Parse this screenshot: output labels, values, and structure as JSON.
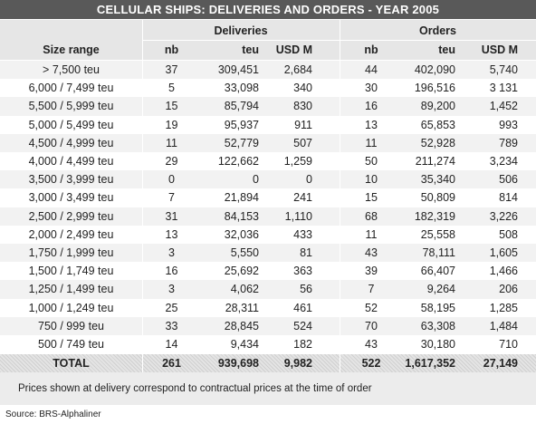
{
  "header": {
    "title": "CELLULAR SHIPS: DELIVERIES AND ORDERS - YEAR 2005"
  },
  "table": {
    "groups": [
      "Deliveries",
      "Orders"
    ],
    "columns": [
      "Size range",
      "nb",
      "teu",
      "USD M",
      "nb",
      "teu",
      "USD M"
    ],
    "rows": [
      [
        "> 7,500 teu",
        "37",
        "309,451",
        "2,684",
        "44",
        "402,090",
        "5,740"
      ],
      [
        "6,000 / 7,499 teu",
        "5",
        "33,098",
        "340",
        "30",
        "196,516",
        "3 131"
      ],
      [
        "5,500 / 5,999 teu",
        "15",
        "85,794",
        "830",
        "16",
        "89,200",
        "1,452"
      ],
      [
        "5,000 / 5,499 teu",
        "19",
        "95,937",
        "911",
        "13",
        "65,853",
        "993"
      ],
      [
        "4,500 / 4,999 teu",
        "11",
        "52,779",
        "507",
        "11",
        "52,928",
        "789"
      ],
      [
        "4,000 / 4,499 teu",
        "29",
        "122,662",
        "1,259",
        "50",
        "211,274",
        "3,234"
      ],
      [
        "3,500 / 3,999 teu",
        "0",
        "0",
        "0",
        "10",
        "35,340",
        "506"
      ],
      [
        "3,000 / 3,499 teu",
        "7",
        "21,894",
        "241",
        "15",
        "50,809",
        "814"
      ],
      [
        "2,500 / 2,999 teu",
        "31",
        "84,153",
        "1,110",
        "68",
        "182,319",
        "3,226"
      ],
      [
        "2,000 / 2,499 teu",
        "13",
        "32,036",
        "433",
        "11",
        "25,558",
        "508"
      ],
      [
        "1,750 / 1,999 teu",
        "3",
        "5,550",
        "81",
        "43",
        "78,111",
        "1,605"
      ],
      [
        "1,500 / 1,749 teu",
        "16",
        "25,692",
        "363",
        "39",
        "66,407",
        "1,466"
      ],
      [
        "1,250 / 1,499 teu",
        "3",
        "4,062",
        "56",
        "7",
        "9,264",
        "206"
      ],
      [
        "1,000 / 1,249 teu",
        "25",
        "28,311",
        "461",
        "52",
        "58,195",
        "1,285"
      ],
      [
        "750 / 999 teu",
        "33",
        "28,845",
        "524",
        "70",
        "63,308",
        "1,484"
      ],
      [
        "500 / 749 teu",
        "14",
        "9,434",
        "182",
        "43",
        "30,180",
        "710"
      ]
    ],
    "total": [
      "TOTAL",
      "261",
      "939,698",
      "9,982",
      "522",
      "1,617,352",
      "27,149"
    ]
  },
  "note": "Prices shown at delivery correspond to contractual prices at the time of order",
  "source": "Source: BRS-Alphaliner"
}
